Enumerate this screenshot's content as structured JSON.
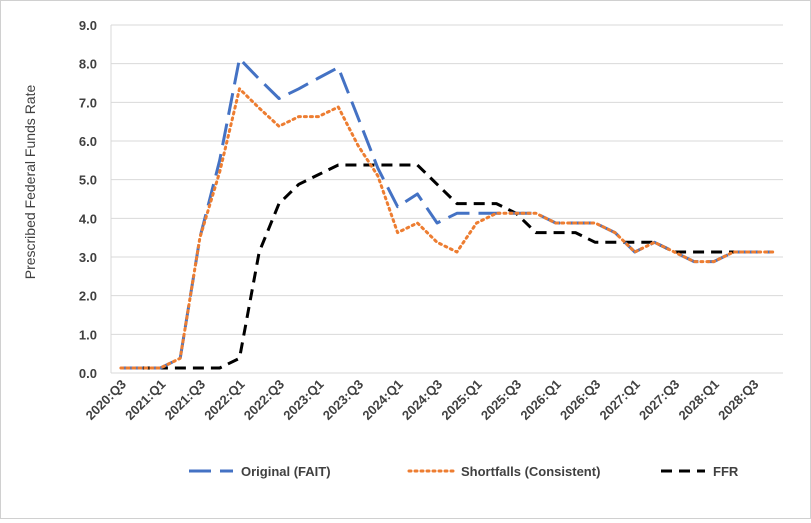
{
  "chart_data": {
    "type": "line",
    "title": "",
    "xlabel": "",
    "ylabel": "Prescribed Federal Funds Rate",
    "ylim": [
      0,
      9
    ],
    "yticks": [
      "0.0",
      "1.0",
      "2.0",
      "3.0",
      "4.0",
      "5.0",
      "6.0",
      "7.0",
      "8.0",
      "9.0"
    ],
    "grid": "horizontal",
    "legend_position": "bottom",
    "x": [
      "2020:Q3",
      "2020:Q4",
      "2021:Q1",
      "2021:Q2",
      "2021:Q3",
      "2021:Q4",
      "2022:Q1",
      "2022:Q2",
      "2022:Q3",
      "2022:Q4",
      "2023:Q1",
      "2023:Q2",
      "2023:Q3",
      "2023:Q4",
      "2024:Q1",
      "2024:Q2",
      "2024:Q3",
      "2024:Q4",
      "2025:Q1",
      "2025:Q2",
      "2025:Q3",
      "2025:Q4",
      "2026:Q1",
      "2026:Q2",
      "2026:Q3",
      "2026:Q4",
      "2027:Q1",
      "2027:Q2",
      "2027:Q3",
      "2027:Q4",
      "2028:Q1",
      "2028:Q2",
      "2028:Q3",
      "2028:Q4"
    ],
    "xtick_labels": [
      "2020:Q3",
      "2021:Q1",
      "2021:Q3",
      "2022:Q1",
      "2022:Q3",
      "2023:Q1",
      "2023:Q3",
      "2024:Q1",
      "2024:Q3",
      "2025:Q1",
      "2025:Q3",
      "2026:Q1",
      "2026:Q3",
      "2027:Q1",
      "2027:Q3",
      "2028:Q1",
      "2028:Q3"
    ],
    "series": [
      {
        "name": "Original (FAIT)",
        "color": "#4472C4",
        "style": "long-dash",
        "values": [
          0.13,
          0.13,
          0.13,
          0.38,
          3.5,
          5.5,
          8.13,
          7.6,
          7.1,
          7.35,
          7.63,
          7.9,
          6.6,
          5.3,
          4.3,
          4.63,
          3.88,
          4.13,
          4.13,
          4.13,
          4.13,
          4.13,
          3.88,
          3.88,
          3.88,
          3.63,
          3.13,
          3.38,
          3.13,
          2.88,
          2.88,
          3.13,
          3.13,
          3.13
        ]
      },
      {
        "name": "Shortfalls (Consistent)",
        "color": "#ED7D31",
        "style": "dotted",
        "values": [
          0.13,
          0.13,
          0.13,
          0.38,
          3.5,
          5.2,
          7.35,
          6.85,
          6.38,
          6.63,
          6.63,
          6.88,
          5.88,
          5.1,
          3.63,
          3.88,
          3.38,
          3.13,
          3.88,
          4.13,
          4.13,
          4.13,
          3.88,
          3.88,
          3.88,
          3.63,
          3.13,
          3.38,
          3.13,
          2.88,
          2.88,
          3.13,
          3.13,
          3.13
        ]
      },
      {
        "name": "FFR",
        "color": "#000000",
        "style": "dash",
        "values": [
          0.13,
          0.13,
          0.13,
          0.13,
          0.13,
          0.13,
          0.38,
          3.13,
          4.38,
          4.88,
          5.13,
          5.38,
          5.38,
          5.38,
          5.38,
          5.38,
          4.88,
          4.38,
          4.38,
          4.38,
          4.13,
          3.63,
          3.63,
          3.63,
          3.38,
          3.38,
          3.38,
          3.38,
          3.13,
          3.13,
          3.13,
          3.13,
          3.13,
          3.13
        ]
      }
    ]
  }
}
